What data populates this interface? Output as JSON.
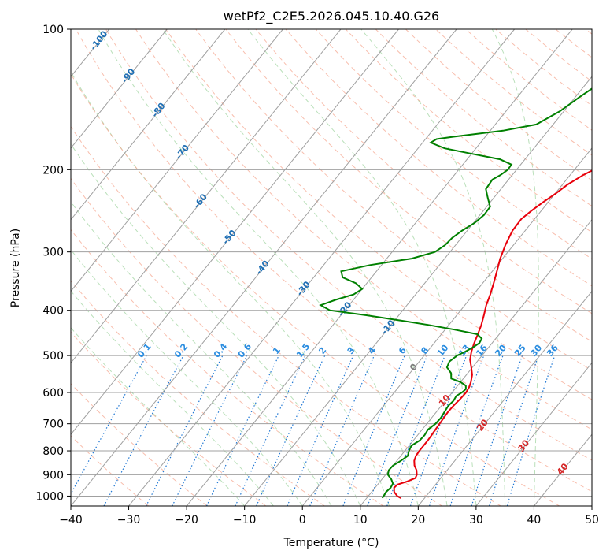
{
  "chart_data": {
    "type": "line",
    "title": "wetPf2_C2E5.2026.045.10.40.G26",
    "xlabel": "Temperature (°C)",
    "ylabel": "Pressure (hPa)",
    "xlim": [
      -40,
      50
    ],
    "ylim": [
      1050,
      100
    ],
    "y_scale": "log",
    "x_ticks": [
      -40,
      -30,
      -20,
      -10,
      0,
      10,
      20,
      30,
      40,
      50
    ],
    "x_tick_labels": [
      "−40",
      "−30",
      "−20",
      "−10",
      "0",
      "10",
      "20",
      "30",
      "40",
      "50"
    ],
    "y_ticks": [
      1000,
      900,
      800,
      700,
      600,
      500,
      400,
      300,
      200,
      100
    ],
    "y_tick_labels": [
      "1000",
      "900",
      "800",
      "700",
      "600",
      "500",
      "400",
      "300",
      "200",
      "100"
    ],
    "grid": true,
    "colors": {
      "temperature": "#e8000b",
      "dewpoint": "#008000",
      "isotherm": "#a0a0a0",
      "dry_adiabat": "#f5a38a",
      "moist_adiabat": "#a9d8a9",
      "mixing_ratio": "#1f77d4",
      "isotherm_label": "#1f6fb4",
      "mixing_label": "#2b8de0",
      "warm_label": "#d62728",
      "zero_label": "#7f7f7f"
    },
    "series": [
      {
        "key": "temperature",
        "pressure": [
          1010,
          1000,
          980,
          960,
          945,
          930,
          915,
          900,
          880,
          860,
          840,
          820,
          800,
          780,
          760,
          740,
          720,
          700,
          680,
          660,
          640,
          620,
          600,
          585,
          570,
          550,
          530,
          510,
          490,
          470,
          450,
          430,
          410,
          390,
          370,
          350,
          330,
          310,
          290,
          270,
          255,
          245,
          235,
          225,
          215,
          205,
          195,
          185,
          178,
          170,
          160,
          150,
          140,
          130,
          125,
          120,
          115,
          110,
          105,
          100
        ],
        "temperature": [
          15.9,
          15.0,
          13.9,
          13.3,
          13.4,
          14.7,
          15.6,
          15.4,
          14.7,
          13.7,
          13.0,
          12.6,
          12.5,
          12.5,
          12.5,
          12.4,
          12.3,
          12.2,
          12.1,
          12.0,
          12.1,
          12.3,
          12.4,
          12.2,
          11.8,
          11.0,
          9.8,
          8.5,
          7.6,
          6.9,
          6.3,
          5.6,
          4.7,
          3.7,
          2.9,
          1.9,
          0.8,
          -0.4,
          -1.4,
          -2.2,
          -2.3,
          -1.7,
          -0.9,
          0.1,
          0.9,
          2.3,
          4.4,
          6.5,
          7.5,
          7.8,
          7.3,
          6.2,
          4.4,
          3.2,
          3.5,
          4.5,
          5.6,
          6.8,
          7.5,
          7.9
        ]
      },
      {
        "key": "dewpoint",
        "pressure": [
          1010,
          995,
          980,
          960,
          940,
          920,
          900,
          880,
          860,
          840,
          820,
          800,
          780,
          760,
          740,
          720,
          700,
          680,
          660,
          640,
          625,
          610,
          600,
          590,
          580,
          570,
          560,
          545,
          530,
          515,
          500,
          490,
          480,
          470,
          460,
          450,
          440,
          430,
          420,
          410,
          400,
          390,
          380,
          370,
          360,
          350,
          340,
          330,
          320,
          310,
          300,
          290,
          280,
          270,
          260,
          250,
          240,
          230,
          220,
          210,
          205,
          200,
          195,
          190,
          185,
          180,
          175,
          172,
          170,
          165,
          160,
          150,
          140,
          130,
          120,
          110,
          100
        ],
        "temperature": [
          12.7,
          12.6,
          12.5,
          12.7,
          12.5,
          11.6,
          10.4,
          9.9,
          10.0,
          10.7,
          11.2,
          10.7,
          10.4,
          11.1,
          11.2,
          11.0,
          11.5,
          11.6,
          11.4,
          11.2,
          11.4,
          11.2,
          11.7,
          11.9,
          11.4,
          10.0,
          7.9,
          7.1,
          5.6,
          5.2,
          5.7,
          6.6,
          7.3,
          7.8,
          7.6,
          6.2,
          1.6,
          -3.5,
          -9.4,
          -15.6,
          -22.6,
          -24.9,
          -23.1,
          -20.7,
          -20.0,
          -21.9,
          -25.0,
          -26.1,
          -22.0,
          -15.7,
          -12.6,
          -11.8,
          -11.6,
          -10.9,
          -9.8,
          -9.3,
          -9.4,
          -11.0,
          -12.6,
          -12.8,
          -12.0,
          -11.5,
          -11.6,
          -14.3,
          -19.8,
          -25.4,
          -28.6,
          -28.1,
          -25.5,
          -17.8,
          -12.9,
          -10.7,
          -9.3,
          -7.6,
          -5.9,
          -3.7,
          -1.7
        ]
      }
    ],
    "isotherm_labels": [
      "-100",
      "-90",
      "-80",
      "-70",
      "-60",
      "-50",
      "-40",
      "-30",
      "-20",
      "-10"
    ],
    "isotherm_label_values": [
      -100,
      -90,
      -80,
      -70,
      -60,
      -50,
      -40,
      -30,
      -20,
      -10
    ],
    "mixing_ratio_labels": [
      "0.1",
      "0.2",
      "0.4",
      "0.6",
      "1",
      "1.5",
      "2",
      "3",
      "4",
      "6",
      "8",
      "10",
      "13",
      "16",
      "20",
      "25",
      "30",
      "36"
    ],
    "mixing_ratio_values": [
      0.1,
      0.2,
      0.4,
      0.6,
      1,
      1.5,
      2,
      3,
      4,
      6,
      8,
      10,
      13,
      16,
      20,
      25,
      30,
      36
    ],
    "warm_labels": [
      "0",
      "10",
      "20",
      "30",
      "40"
    ],
    "warm_label_values": [
      0,
      10,
      20,
      30,
      40
    ]
  }
}
